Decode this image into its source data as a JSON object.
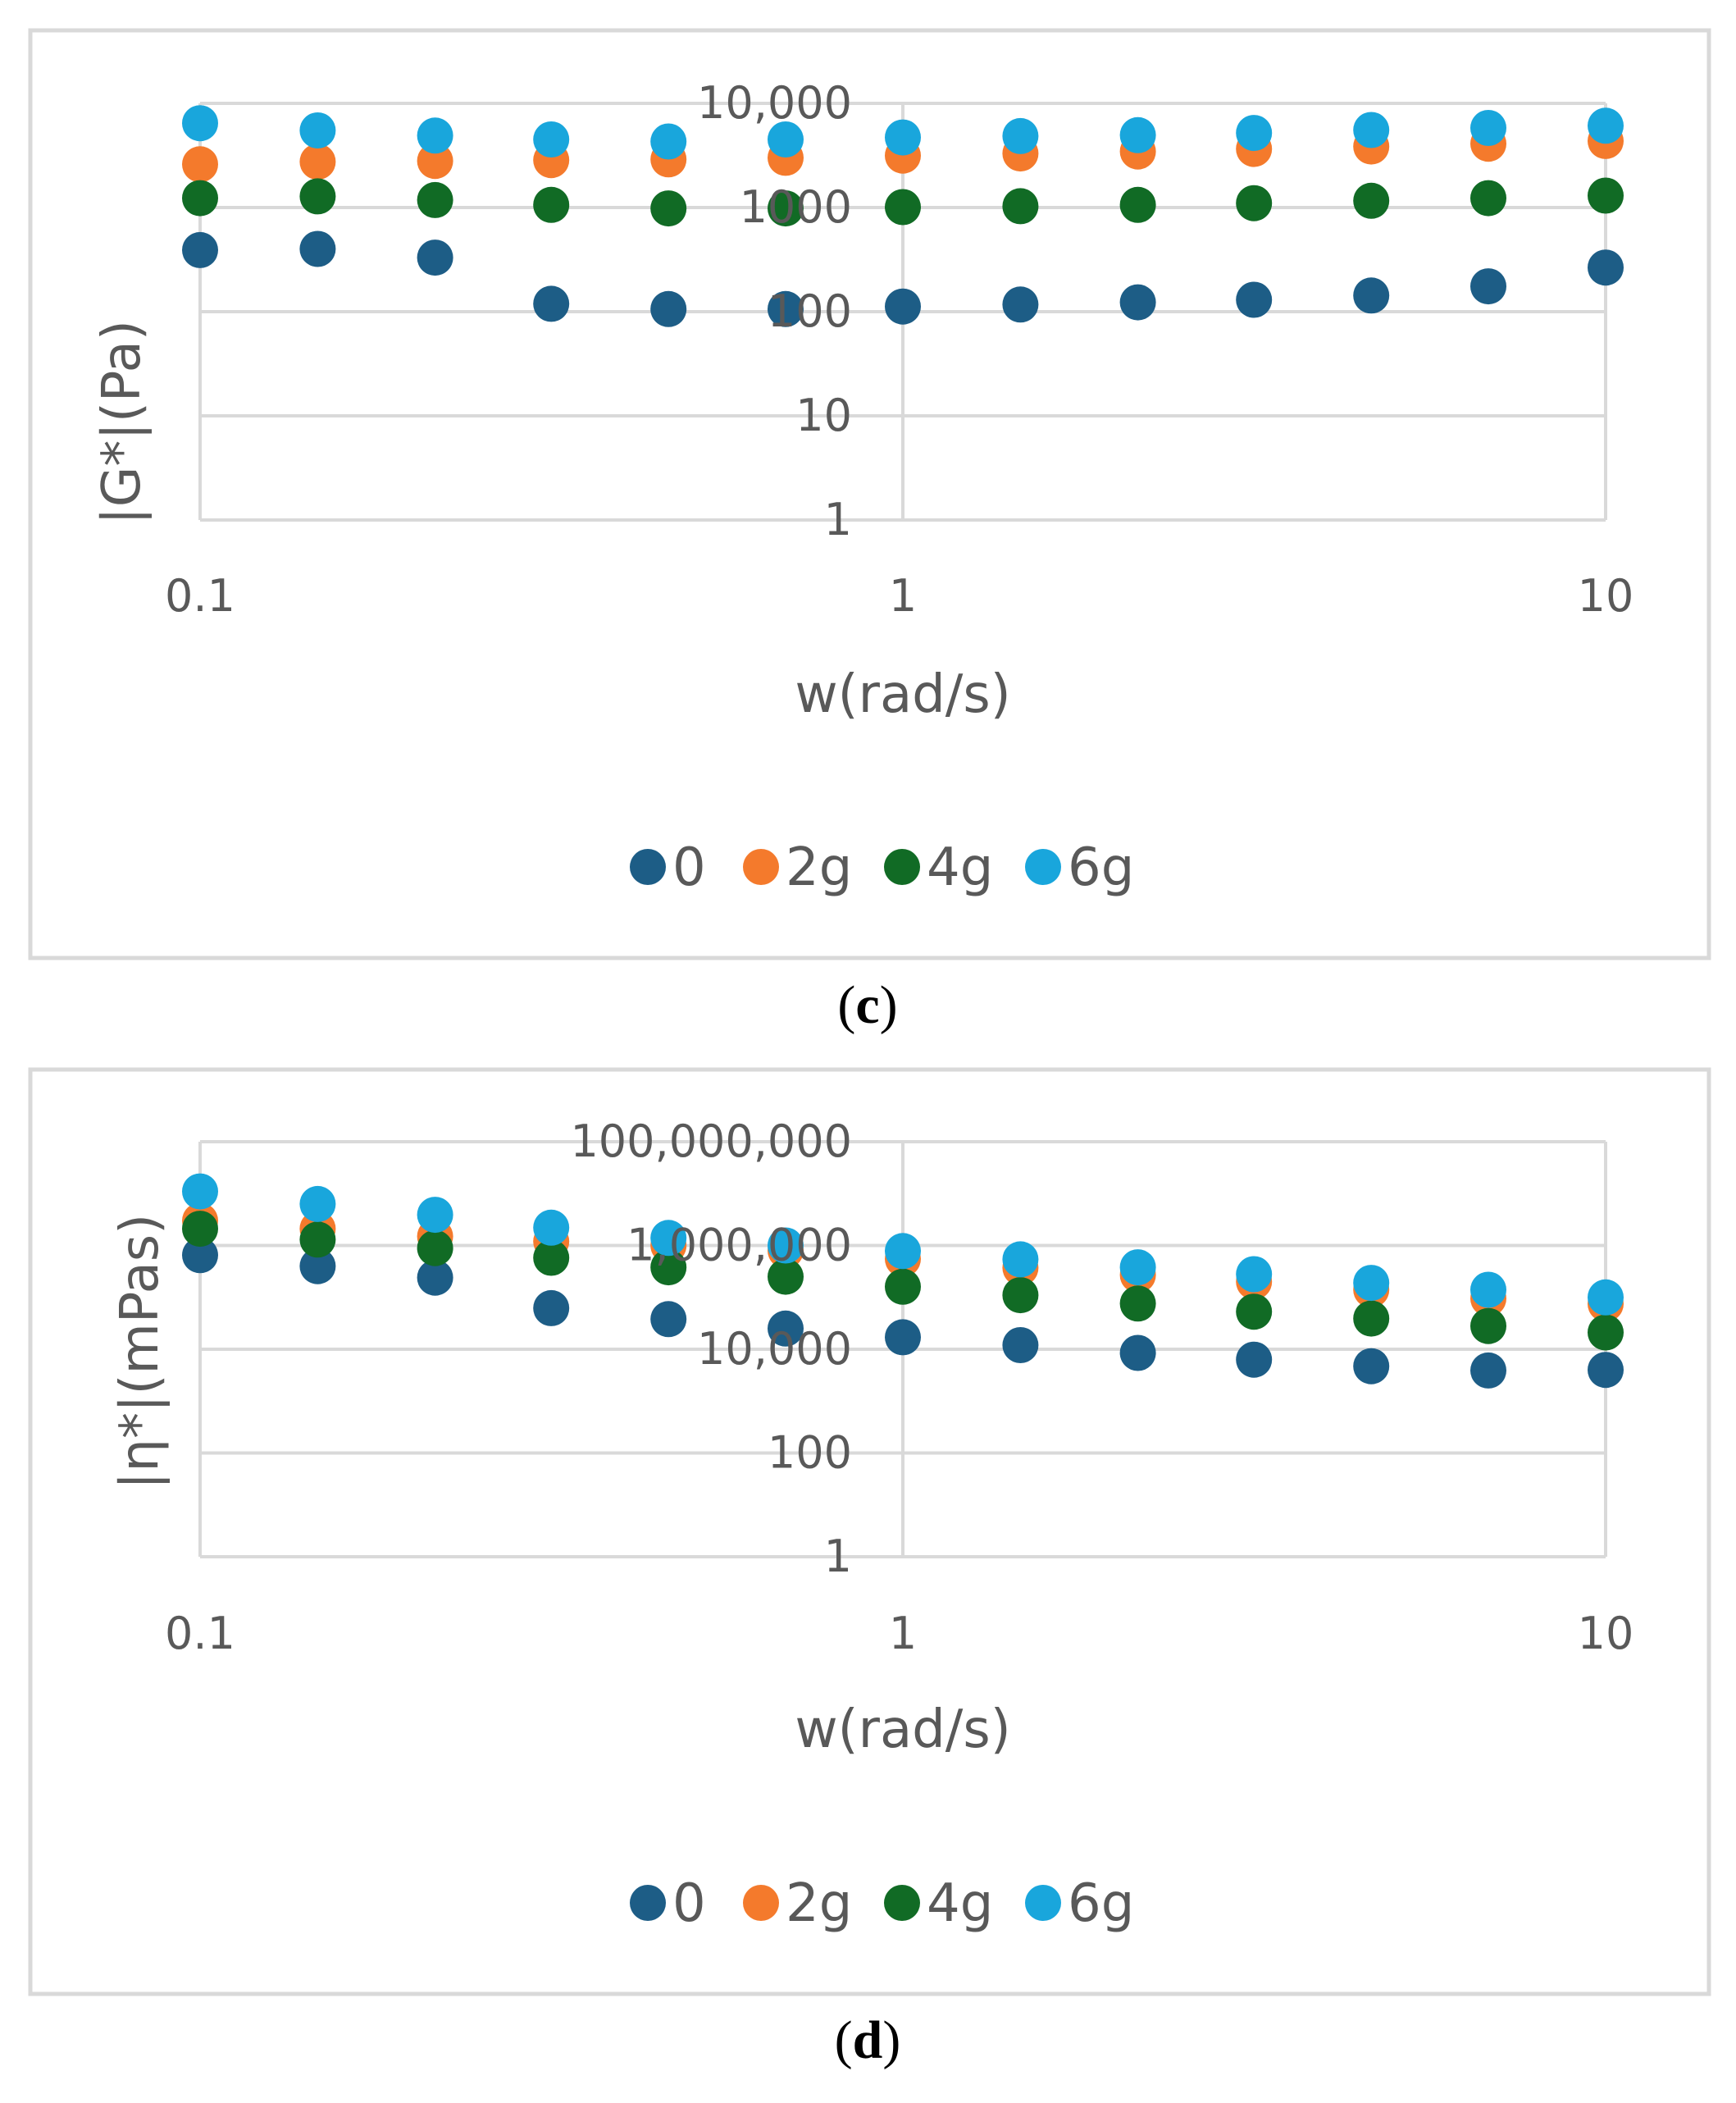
{
  "colors": {
    "series_0": "#1d5d86",
    "series_2g": "#f47a2c",
    "series_4g": "#116b25",
    "series_6g": "#19a6dc",
    "gridline": "#d9d9d9",
    "text": "#595959",
    "frame": "#d9d9d9"
  },
  "chart_data": [
    {
      "panel": "c",
      "caption": {
        "open": "(",
        "letter": "c",
        "close": ")"
      },
      "type": "scatter",
      "title": "",
      "xlabel": "w(rad/s)",
      "ylabel": "|G*|(Pa)",
      "xscale": "log",
      "yscale": "log",
      "xlim": [
        0.1,
        10
      ],
      "ylim": [
        1,
        10000
      ],
      "x_ticks": [
        {
          "value": 0.1,
          "label": "0.1"
        },
        {
          "value": 1,
          "label": "1"
        },
        {
          "value": 10,
          "label": "10"
        }
      ],
      "y_ticks": [
        {
          "value": 1,
          "label": "1"
        },
        {
          "value": 10,
          "label": "10"
        },
        {
          "value": 100,
          "label": "100"
        },
        {
          "value": 1000,
          "label": "1000"
        },
        {
          "value": 10000,
          "label": "10,000"
        }
      ],
      "grid": true,
      "legend": "bottom",
      "x": [
        0.1,
        0.147,
        0.216,
        0.316,
        0.464,
        0.681,
        1,
        1.47,
        2.16,
        3.16,
        4.64,
        6.81,
        10
      ],
      "series": [
        {
          "name": "0",
          "values": [
            390,
            400,
            330,
            119,
            106,
            106,
            112,
            117,
            123,
            130,
            143,
            175,
            265
          ]
        },
        {
          "name": "2g",
          "values": [
            2600,
            2750,
            2800,
            2850,
            2900,
            3000,
            3150,
            3300,
            3450,
            3650,
            3850,
            4100,
            4350
          ]
        },
        {
          "name": "4g",
          "values": [
            1230,
            1280,
            1180,
            1060,
            980,
            980,
            1010,
            1030,
            1060,
            1100,
            1160,
            1230,
            1300
          ]
        },
        {
          "name": "6g",
          "values": [
            6450,
            5500,
            4900,
            4500,
            4300,
            4500,
            4700,
            4850,
            4950,
            5200,
            5550,
            5800,
            6100
          ]
        }
      ]
    },
    {
      "panel": "d",
      "caption": {
        "open": "(",
        "letter": "d",
        "close": ")"
      },
      "type": "scatter",
      "title": "",
      "xlabel": "w(rad/s)",
      "ylabel": "|η*|(mPas)",
      "xscale": "log",
      "yscale": "log",
      "xlim": [
        0.1,
        10
      ],
      "ylim": [
        1,
        100000000
      ],
      "x_ticks": [
        {
          "value": 0.1,
          "label": "0.1"
        },
        {
          "value": 1,
          "label": "1"
        },
        {
          "value": 10,
          "label": "10"
        }
      ],
      "y_ticks": [
        {
          "value": 1,
          "label": "1"
        },
        {
          "value": 100,
          "label": "100"
        },
        {
          "value": 10000,
          "label": "10,000"
        },
        {
          "value": 1000000,
          "label": "1,000,000"
        },
        {
          "value": 100000000,
          "label": "100,000,000"
        }
      ],
      "grid": true,
      "legend": "bottom",
      "x": [
        0.1,
        0.147,
        0.216,
        0.316,
        0.464,
        0.681,
        1,
        1.47,
        2.16,
        3.16,
        4.64,
        6.81,
        10
      ],
      "series": [
        {
          "name": "0",
          "values": [
            650000,
            400000,
            240000,
            62000,
            38000,
            25000,
            17000,
            12000,
            8500,
            6300,
            4700,
            3900,
            4000
          ]
        },
        {
          "name": "2g",
          "values": [
            3000000,
            2100000,
            1500000,
            1200000,
            1000000,
            800000,
            550000,
            370000,
            270000,
            200000,
            140000,
            95000,
            75000
          ]
        },
        {
          "name": "4g",
          "values": [
            2100000,
            1300000,
            890000,
            580000,
            380000,
            250000,
            160000,
            110000,
            76000,
            53000,
            39000,
            28000,
            21000
          ]
        },
        {
          "name": "6g",
          "values": [
            11000000,
            6300000,
            3900000,
            2200000,
            1400000,
            1000000,
            780000,
            540000,
            380000,
            280000,
            190000,
            140000,
            100000
          ]
        }
      ]
    }
  ]
}
